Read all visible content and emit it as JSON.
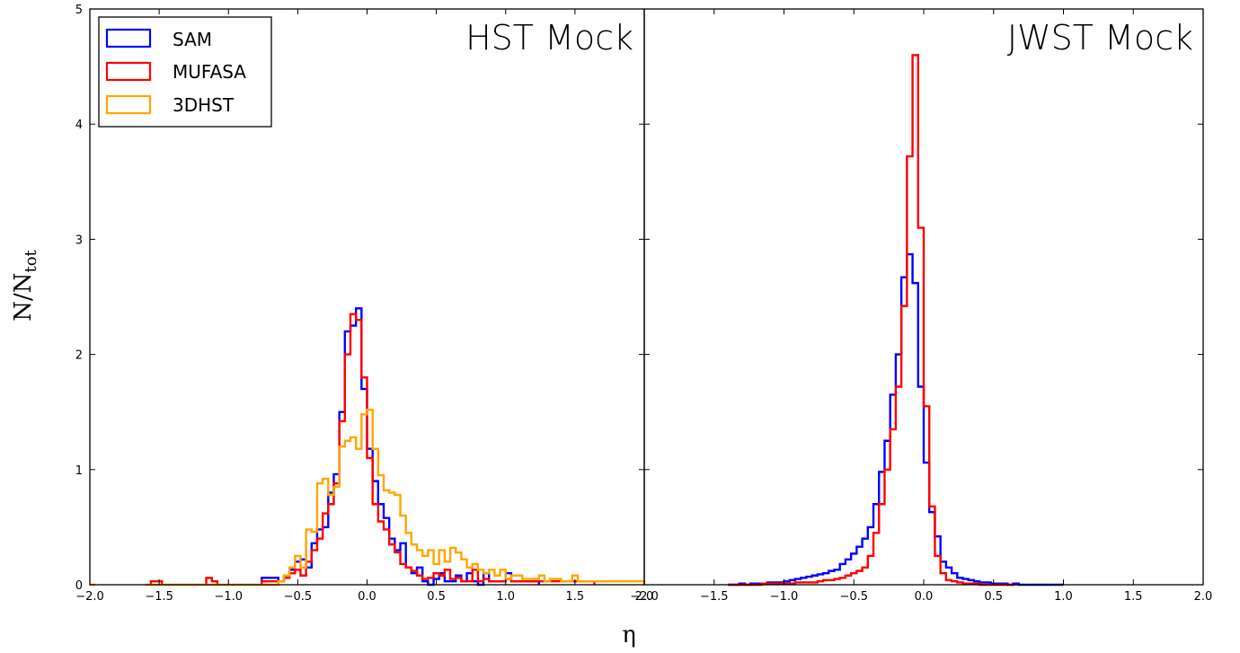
{
  "figure": {
    "ylabel": "N/N",
    "ylabel_sub": "tot",
    "xlabel": "η",
    "colors": {
      "SAM": "#0000ff",
      "MUFASA": "#ff0000",
      "3DHST": "#ffa500"
    }
  },
  "chart_data": [
    {
      "type": "histogram",
      "title": "HST Mock",
      "xlim": [
        -2.0,
        2.0
      ],
      "ylim": [
        0,
        5
      ],
      "xticks": [
        "−2.0",
        "−1.5",
        "−1.0",
        "−0.5",
        "0.0",
        "0.5",
        "1.0",
        "1.5",
        "2.0"
      ],
      "yticks": [
        "0",
        "1",
        "2",
        "3",
        "4",
        "5"
      ],
      "legend": {
        "position": "top-left",
        "entries": [
          "SAM",
          "MUFASA",
          "3DHST"
        ]
      },
      "bin_width": 0.04,
      "series": [
        {
          "name": "SAM",
          "color": "#0000ff",
          "x": [
            -0.76,
            -0.72,
            -0.68,
            -0.64,
            -0.6,
            -0.56,
            -0.52,
            -0.48,
            -0.44,
            -0.4,
            -0.36,
            -0.32,
            -0.28,
            -0.24,
            -0.2,
            -0.16,
            -0.12,
            -0.08,
            -0.04,
            0.0,
            0.04,
            0.08,
            0.12,
            0.16,
            0.2,
            0.24,
            0.28,
            0.32,
            0.36,
            0.4,
            0.44,
            0.48,
            0.52,
            0.56,
            0.6,
            0.64,
            0.68,
            0.72,
            0.76,
            0.8,
            0.84,
            0.88,
            0.92,
            0.96,
            1.0,
            1.04,
            1.08,
            1.12,
            1.16,
            1.2
          ],
          "values": [
            0.06,
            0.06,
            0.06,
            0.03,
            0.06,
            0.13,
            0.2,
            0.22,
            0.15,
            0.36,
            0.48,
            0.5,
            0.8,
            0.96,
            1.5,
            2.2,
            2.25,
            2.4,
            1.7,
            1.18,
            0.9,
            0.7,
            0.58,
            0.4,
            0.3,
            0.36,
            0.15,
            0.1,
            0.15,
            0.03,
            0.0,
            0.05,
            0.1,
            0.03,
            0.03,
            0.08,
            0.03,
            0.1,
            0.03,
            0.0,
            0.1,
            0.03,
            0.03,
            0.03,
            0.1,
            0.03,
            0.03,
            0.03,
            0.03,
            0.03
          ]
        },
        {
          "name": "MUFASA",
          "color": "#ff0000",
          "x": [
            -1.56,
            -1.52,
            -1.16,
            -1.12,
            -0.76,
            -0.72,
            -0.68,
            -0.64,
            -0.6,
            -0.56,
            -0.52,
            -0.48,
            -0.44,
            -0.4,
            -0.36,
            -0.32,
            -0.28,
            -0.24,
            -0.2,
            -0.16,
            -0.12,
            -0.08,
            -0.04,
            0.0,
            0.04,
            0.08,
            0.12,
            0.16,
            0.2,
            0.24,
            0.28,
            0.32,
            0.36,
            0.4,
            0.44,
            0.48,
            0.52,
            0.56,
            0.6,
            0.64,
            0.68,
            0.72,
            0.76,
            0.8,
            0.84,
            0.88,
            0.92,
            0.96,
            1.0,
            1.04,
            1.08,
            1.12,
            1.16,
            1.2,
            1.24,
            1.28,
            1.32,
            1.36,
            1.4,
            1.44,
            1.48,
            1.52,
            1.56,
            1.6
          ],
          "values": [
            0.03,
            0.03,
            0.06,
            0.03,
            0.03,
            0.03,
            0.03,
            0.03,
            0.06,
            0.1,
            0.13,
            0.08,
            0.2,
            0.3,
            0.4,
            0.62,
            0.7,
            0.88,
            1.42,
            2.0,
            2.35,
            2.3,
            1.8,
            1.1,
            0.7,
            0.55,
            0.48,
            0.35,
            0.28,
            0.18,
            0.15,
            0.12,
            0.08,
            0.05,
            0.06,
            0.1,
            0.08,
            0.13,
            0.05,
            0.06,
            0.03,
            0.03,
            0.13,
            0.03,
            0.05,
            0.03,
            0.03,
            0.03,
            0.05,
            0.03,
            0.03,
            0.03,
            0.03,
            0.03,
            0.03,
            0.03,
            0.03,
            0.03,
            0.03,
            0.03,
            0.03,
            0.03,
            0.03,
            0.03
          ]
        },
        {
          "name": "3DHST",
          "color": "#ffa500",
          "x": [
            -2.0,
            -1.6,
            -1.56,
            -1.52,
            -1.48,
            -1.44,
            -1.4,
            -1.36,
            -1.32,
            -1.28,
            -1.24,
            -1.2,
            -1.16,
            -1.12,
            -1.08,
            -1.04,
            -1.0,
            -0.96,
            -0.92,
            -0.88,
            -0.84,
            -0.8,
            -0.76,
            -0.72,
            -0.68,
            -0.64,
            -0.6,
            -0.56,
            -0.52,
            -0.48,
            -0.44,
            -0.4,
            -0.36,
            -0.32,
            -0.28,
            -0.24,
            -0.2,
            -0.16,
            -0.12,
            -0.08,
            -0.04,
            0.0,
            0.04,
            0.08,
            0.12,
            0.16,
            0.2,
            0.24,
            0.28,
            0.32,
            0.36,
            0.4,
            0.44,
            0.48,
            0.52,
            0.56,
            0.6,
            0.64,
            0.68,
            0.72,
            0.76,
            0.8,
            0.84,
            0.88,
            0.92,
            0.96,
            1.0,
            1.04,
            1.08,
            1.12,
            1.16,
            1.2,
            1.24,
            1.28,
            1.32,
            1.36,
            1.4,
            1.44,
            1.48,
            1.52,
            1.56,
            1.6,
            1.64,
            1.68,
            1.72,
            1.76,
            1.8,
            1.84,
            1.88,
            1.92,
            1.96
          ],
          "values": [
            0.0,
            0.0,
            0.0,
            0.0,
            0.0,
            0.0,
            0.0,
            0.0,
            0.0,
            0.0,
            0.0,
            0.0,
            0.0,
            0.0,
            0.0,
            0.0,
            0.0,
            0.0,
            0.0,
            0.0,
            0.0,
            0.0,
            0.0,
            0.0,
            0.0,
            0.03,
            0.08,
            0.15,
            0.25,
            0.15,
            0.48,
            0.46,
            0.88,
            0.92,
            0.78,
            0.85,
            1.2,
            1.25,
            1.28,
            1.18,
            1.48,
            1.52,
            1.18,
            0.95,
            0.82,
            0.8,
            0.78,
            0.6,
            0.45,
            0.35,
            0.3,
            0.25,
            0.3,
            0.18,
            0.3,
            0.2,
            0.32,
            0.28,
            0.22,
            0.15,
            0.18,
            0.13,
            0.1,
            0.13,
            0.08,
            0.13,
            0.05,
            0.08,
            0.08,
            0.05,
            0.05,
            0.05,
            0.08,
            0.03,
            0.05,
            0.05,
            0.03,
            0.03,
            0.08,
            0.03,
            0.03,
            0.03,
            0.03,
            0.03,
            0.03,
            0.03,
            0.03,
            0.03,
            0.03,
            0.03,
            0.03
          ]
        }
      ]
    },
    {
      "type": "histogram",
      "title": "JWST Mock",
      "xlim": [
        -2.0,
        2.0
      ],
      "ylim": [
        0,
        5
      ],
      "xticks": [
        "−2.0",
        "−1.5",
        "−1.0",
        "−0.5",
        "0.0",
        "0.5",
        "1.0",
        "1.5",
        "2.0"
      ],
      "yticks": [
        "0",
        "1",
        "2",
        "3",
        "4",
        "5"
      ],
      "bin_width": 0.04,
      "series": [
        {
          "name": "SAM",
          "color": "#0000ff",
          "x": [
            -1.4,
            -1.36,
            -1.32,
            -1.28,
            -1.24,
            -1.2,
            -1.16,
            -1.12,
            -1.08,
            -1.04,
            -1.0,
            -0.96,
            -0.92,
            -0.88,
            -0.84,
            -0.8,
            -0.76,
            -0.72,
            -0.68,
            -0.64,
            -0.6,
            -0.56,
            -0.52,
            -0.48,
            -0.44,
            -0.4,
            -0.36,
            -0.32,
            -0.28,
            -0.24,
            -0.2,
            -0.16,
            -0.12,
            -0.08,
            -0.04,
            0.0,
            0.04,
            0.08,
            0.12,
            0.16,
            0.2,
            0.24,
            0.28,
            0.32,
            0.36,
            0.4,
            0.44,
            0.48,
            0.52,
            0.56,
            0.6,
            0.64,
            0.68,
            0.72,
            0.76,
            0.8,
            0.84,
            0.88,
            0.92,
            0.96
          ],
          "values": [
            0.0,
            0.0,
            0.01,
            0.0,
            0.01,
            0.01,
            0.01,
            0.02,
            0.02,
            0.02,
            0.03,
            0.04,
            0.05,
            0.06,
            0.07,
            0.08,
            0.09,
            0.1,
            0.12,
            0.13,
            0.18,
            0.22,
            0.27,
            0.33,
            0.4,
            0.5,
            0.7,
            0.98,
            1.25,
            1.65,
            2.0,
            2.67,
            2.87,
            2.62,
            1.72,
            1.06,
            0.63,
            0.42,
            0.2,
            0.15,
            0.1,
            0.06,
            0.05,
            0.04,
            0.03,
            0.02,
            0.02,
            0.01,
            0.01,
            0.01,
            0.0,
            0.01,
            0.0,
            0.0,
            0.0,
            0.0,
            0.0,
            0.0,
            0.0,
            0.0
          ]
        },
        {
          "name": "MUFASA",
          "color": "#ff0000",
          "x": [
            -1.4,
            -1.36,
            -1.32,
            -1.28,
            -1.24,
            -1.2,
            -1.16,
            -1.12,
            -1.08,
            -1.04,
            -1.0,
            -0.96,
            -0.92,
            -0.88,
            -0.84,
            -0.8,
            -0.76,
            -0.72,
            -0.68,
            -0.64,
            -0.6,
            -0.56,
            -0.52,
            -0.48,
            -0.44,
            -0.4,
            -0.36,
            -0.32,
            -0.28,
            -0.24,
            -0.2,
            -0.16,
            -0.12,
            -0.08,
            -0.04,
            0.0,
            0.04,
            0.08,
            0.12,
            0.16,
            0.2,
            0.24,
            0.28,
            0.32,
            0.36,
            0.4,
            0.44,
            0.48,
            0.52,
            0.56,
            0.6
          ],
          "values": [
            0.0,
            0.0,
            0.0,
            0.0,
            0.0,
            0.0,
            0.01,
            0.01,
            0.01,
            0.01,
            0.01,
            0.01,
            0.02,
            0.02,
            0.02,
            0.02,
            0.03,
            0.04,
            0.04,
            0.05,
            0.06,
            0.08,
            0.1,
            0.12,
            0.15,
            0.25,
            0.45,
            0.7,
            1.0,
            1.35,
            1.72,
            2.42,
            3.72,
            4.6,
            3.1,
            1.55,
            0.68,
            0.25,
            0.1,
            0.04,
            0.03,
            0.02,
            0.01,
            0.01,
            0.01,
            0.0,
            0.0,
            0.0,
            0.0,
            0.0,
            0.0
          ]
        }
      ]
    }
  ]
}
